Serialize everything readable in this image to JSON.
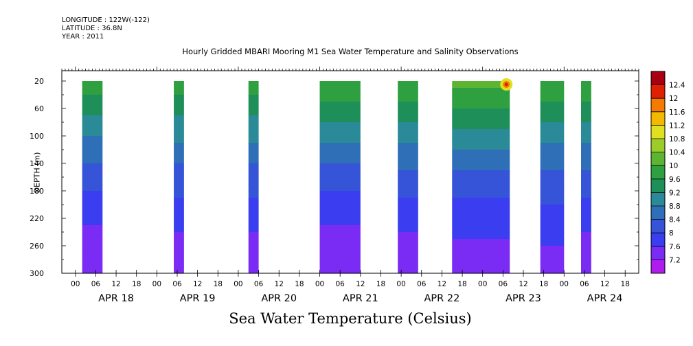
{
  "header": {
    "longitude": "LONGITUDE : 122W(-122)",
    "latitude": "LATITUDE : 36.8N",
    "year": "YEAR : 2011"
  },
  "title": "Hourly Gridded MBARI Mooring M1 Sea Water Temperature and Salinity Observations",
  "colorbar_title": "Sea Water Temperature (Celsius)",
  "chart_data": {
    "type": "heatmap",
    "title": "Hourly Gridded MBARI Mooring M1 Sea Water Temperature and Salinity Observations",
    "variable": "Sea Water Temperature (Celsius)",
    "xlabel": "",
    "ylabel": "DEPTH (m)",
    "x_axis": {
      "unit": "hours",
      "range": [
        "APR 17 20:00",
        "APR 24 22:00"
      ],
      "hour_ticks": [
        "00",
        "06",
        "12",
        "18",
        "00",
        "06",
        "12",
        "18",
        "00",
        "06",
        "12",
        "18",
        "00",
        "06",
        "12",
        "18",
        "00",
        "06",
        "12",
        "18",
        "00",
        "06",
        "12",
        "18",
        "00",
        "06",
        "12",
        "18"
      ],
      "day_labels": [
        "APR 18",
        "APR 19",
        "APR 20",
        "APR 21",
        "APR 22",
        "APR 23",
        "APR 24"
      ]
    },
    "y_axis": {
      "range": [
        300,
        5
      ],
      "ticks": [
        20,
        60,
        100,
        140,
        180,
        220,
        260,
        300
      ],
      "inverted": true
    },
    "colorbar": {
      "levels": [
        7.2,
        7.6,
        8,
        8.4,
        8.8,
        9.2,
        9.6,
        10,
        10.4,
        10.8,
        11.2,
        11.6,
        12,
        12.4
      ],
      "colors": [
        "#b01cf0",
        "#7a2cf5",
        "#3b3df0",
        "#3554d8",
        "#2f6fb8",
        "#2a8a98",
        "#1f8f5a",
        "#2ea040",
        "#5db433",
        "#9ccc2a",
        "#e0e020",
        "#f5b800",
        "#f57a00",
        "#e02000",
        "#a80010"
      ]
    },
    "data_segments": [
      {
        "start": "APR 18 02:00",
        "end": "APR 18 08:00",
        "surface_temp": 9.9,
        "bottom_temp": 7.3
      },
      {
        "start": "APR 19 05:00",
        "end": "APR 19 08:00",
        "surface_temp": 9.9,
        "bottom_temp": 7.4
      },
      {
        "start": "APR 20 03:00",
        "end": "APR 20 06:00",
        "surface_temp": 9.9,
        "bottom_temp": 7.4
      },
      {
        "start": "APR 21 00:00",
        "end": "APR 21 12:00",
        "surface_temp": 10.0,
        "bottom_temp": 7.3
      },
      {
        "start": "APR 21 23:00",
        "end": "APR 22 05:00",
        "surface_temp": 10.0,
        "bottom_temp": 7.4
      },
      {
        "start": "APR 22 15:00",
        "end": "APR 23 08:00",
        "surface_temp": 10.2,
        "bottom_temp": 7.4,
        "max_temp": 12.2
      },
      {
        "start": "APR 23 17:00",
        "end": "APR 24 00:00",
        "surface_temp": 10.0,
        "bottom_temp": 7.5
      },
      {
        "start": "APR 24 05:00",
        "end": "APR 24 08:00",
        "surface_temp": 10.0,
        "bottom_temp": 7.4
      }
    ]
  }
}
